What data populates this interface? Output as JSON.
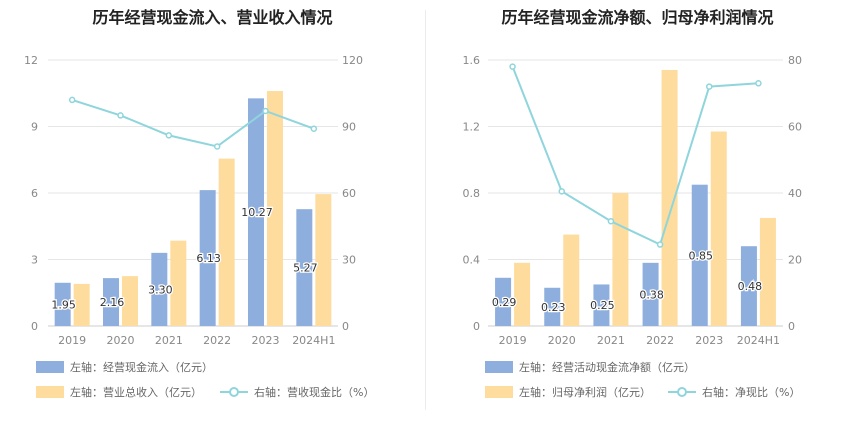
{
  "chart_data": [
    {
      "type": "bar",
      "title": "历年经营现金流入、营业收入情况",
      "categories": [
        "2019",
        "2020",
        "2021",
        "2022",
        "2023",
        "2024H1"
      ],
      "left_axis": {
        "ylim": [
          0,
          12
        ],
        "ticks": [
          "0",
          "3",
          "6",
          "9",
          "12"
        ]
      },
      "right_axis": {
        "ylim": [
          0,
          120
        ],
        "ticks": [
          "0",
          "30",
          "60",
          "90",
          "120"
        ]
      },
      "series": [
        {
          "name": "左轴：经营现金流入（亿元）",
          "axis": "left",
          "kind": "bar",
          "color": "#8eaede",
          "values": [
            1.95,
            2.16,
            3.3,
            6.13,
            10.27,
            5.27
          ],
          "labels": [
            "1.95",
            "2.16",
            "3.30",
            "6.13",
            "10.27",
            "5.27"
          ]
        },
        {
          "name": "左轴：营业总收入（亿元）",
          "axis": "left",
          "kind": "bar",
          "color": "#fddc9e",
          "values": [
            1.9,
            2.25,
            3.85,
            7.55,
            10.6,
            5.95
          ]
        },
        {
          "name": "右轴：营收现金比（%）",
          "axis": "right",
          "kind": "line",
          "color": "#8fd5dc",
          "values": [
            102,
            95,
            86,
            81,
            97,
            89
          ]
        }
      ]
    },
    {
      "type": "bar",
      "title": "历年经营现金流净额、归母净利润情况",
      "categories": [
        "2019",
        "2020",
        "2021",
        "2022",
        "2023",
        "2024H1"
      ],
      "left_axis": {
        "ylim": [
          0,
          1.6
        ],
        "ticks": [
          "0",
          "0.4",
          "0.8",
          "1.2",
          "1.6"
        ]
      },
      "right_axis": {
        "ylim": [
          0,
          80
        ],
        "ticks": [
          "0",
          "20",
          "40",
          "60",
          "80"
        ]
      },
      "series": [
        {
          "name": "左轴：经营活动现金流净额（亿元）",
          "axis": "left",
          "kind": "bar",
          "color": "#8eaede",
          "values": [
            0.29,
            0.23,
            0.25,
            0.38,
            0.85,
            0.48
          ],
          "labels": [
            "0.29",
            "0.23",
            "0.25",
            "0.38",
            "0.85",
            "0.48"
          ]
        },
        {
          "name": "左轴：归母净利润（亿元）",
          "axis": "left",
          "kind": "bar",
          "color": "#fddc9e",
          "values": [
            0.38,
            0.55,
            0.8,
            1.54,
            1.17,
            0.65
          ]
        },
        {
          "name": "右轴：净现比（%）",
          "axis": "right",
          "kind": "line",
          "color": "#8fd5dc",
          "values": [
            78,
            40.5,
            31.5,
            24.5,
            72,
            73
          ]
        }
      ]
    }
  ]
}
